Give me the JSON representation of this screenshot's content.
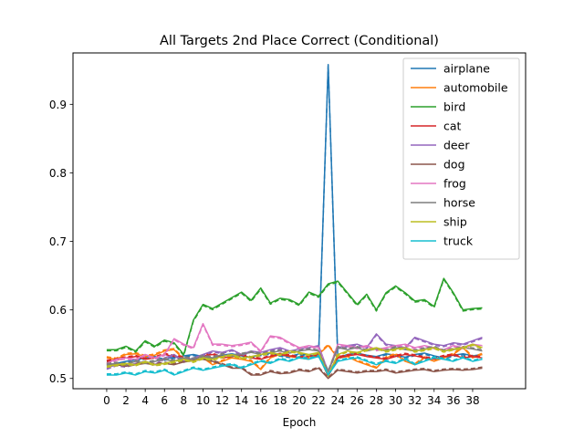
{
  "chart_data": {
    "type": "line",
    "title": "All Targets 2nd Place Correct (Conditional)",
    "xlabel": "Epoch",
    "ylabel": "",
    "xlim": [
      -3.5,
      43.5
    ],
    "ylim": [
      0.485,
      0.975
    ],
    "xticks": [
      0,
      2,
      4,
      6,
      8,
      10,
      12,
      14,
      16,
      18,
      20,
      22,
      24,
      26,
      28,
      30,
      32,
      34,
      36,
      38
    ],
    "yticks": [
      0.5,
      0.6,
      0.7,
      0.8,
      0.9
    ],
    "ytick_labels": [
      "0.5",
      "0.6",
      "0.7",
      "0.8",
      "0.9"
    ],
    "grid": false,
    "legend_position": "top-right",
    "x": [
      0,
      1,
      2,
      3,
      4,
      5,
      6,
      7,
      8,
      9,
      10,
      11,
      12,
      13,
      14,
      15,
      16,
      17,
      18,
      19,
      20,
      21,
      22,
      23,
      24,
      25,
      26,
      27,
      28,
      29,
      30,
      31,
      32,
      33,
      34,
      35,
      36,
      37,
      38,
      39
    ],
    "series": [
      {
        "name": "airplane",
        "color": "#1f77b4",
        "values": [
          0.52,
          0.522,
          0.525,
          0.527,
          0.53,
          0.532,
          0.528,
          0.531,
          0.533,
          0.535,
          0.532,
          0.53,
          0.534,
          0.536,
          0.533,
          0.531,
          0.535,
          0.537,
          0.534,
          0.532,
          0.536,
          0.534,
          0.533,
          0.958,
          0.53,
          0.535,
          0.537,
          0.534,
          0.532,
          0.536,
          0.534,
          0.531,
          0.535,
          0.537,
          0.533,
          0.53,
          0.534,
          0.536,
          0.533,
          0.535
        ]
      },
      {
        "name": "automobile",
        "color": "#ff7f0e",
        "values": [
          0.53,
          0.528,
          0.535,
          0.536,
          0.532,
          0.534,
          0.54,
          0.542,
          0.528,
          0.525,
          0.53,
          0.52,
          0.525,
          0.53,
          0.528,
          0.525,
          0.513,
          0.53,
          0.535,
          0.532,
          0.53,
          0.528,
          0.535,
          0.548,
          0.53,
          0.532,
          0.525,
          0.52,
          0.515,
          0.53,
          0.535,
          0.525,
          0.52,
          0.53,
          0.525,
          0.53,
          0.535,
          0.545,
          0.53,
          0.535
        ]
      },
      {
        "name": "bird",
        "color": "#2ca02c",
        "values": [
          0.542,
          0.542,
          0.547,
          0.54,
          0.555,
          0.547,
          0.556,
          0.552,
          0.535,
          0.585,
          0.608,
          0.602,
          0.61,
          0.618,
          0.626,
          0.614,
          0.632,
          0.61,
          0.617,
          0.615,
          0.608,
          0.626,
          0.62,
          0.638,
          0.642,
          0.625,
          0.608,
          0.623,
          0.6,
          0.625,
          0.635,
          0.625,
          0.613,
          0.615,
          0.605,
          0.646,
          0.625,
          0.6,
          0.602,
          0.603
        ]
      },
      {
        "name": "cat",
        "color": "#d62728",
        "values": [
          0.525,
          0.527,
          0.53,
          0.532,
          0.528,
          0.53,
          0.535,
          0.532,
          0.53,
          0.528,
          0.533,
          0.535,
          0.53,
          0.532,
          0.534,
          0.53,
          0.528,
          0.532,
          0.535,
          0.533,
          0.53,
          0.532,
          0.534,
          0.503,
          0.53,
          0.533,
          0.535,
          0.532,
          0.53,
          0.528,
          0.532,
          0.535,
          0.533,
          0.53,
          0.528,
          0.532,
          0.534,
          0.53,
          0.532,
          0.53
        ]
      },
      {
        "name": "deer",
        "color": "#9467bd",
        "values": [
          0.515,
          0.52,
          0.518,
          0.522,
          0.525,
          0.52,
          0.53,
          0.535,
          0.525,
          0.53,
          0.535,
          0.54,
          0.538,
          0.542,
          0.535,
          0.54,
          0.538,
          0.542,
          0.545,
          0.54,
          0.543,
          0.545,
          0.548,
          0.51,
          0.545,
          0.548,
          0.55,
          0.545,
          0.565,
          0.55,
          0.548,
          0.545,
          0.56,
          0.555,
          0.55,
          0.548,
          0.552,
          0.55,
          0.555,
          0.56
        ]
      },
      {
        "name": "dog",
        "color": "#8c564b",
        "values": [
          0.522,
          0.52,
          0.518,
          0.52,
          0.522,
          0.52,
          0.522,
          0.52,
          0.524,
          0.526,
          0.528,
          0.525,
          0.52,
          0.515,
          0.515,
          0.505,
          0.505,
          0.51,
          0.507,
          0.508,
          0.512,
          0.51,
          0.515,
          0.5,
          0.512,
          0.51,
          0.508,
          0.51,
          0.51,
          0.512,
          0.508,
          0.51,
          0.512,
          0.513,
          0.51,
          0.512,
          0.513,
          0.512,
          0.513,
          0.515
        ]
      },
      {
        "name": "frog",
        "color": "#e377c2",
        "values": [
          0.522,
          0.528,
          0.53,
          0.528,
          0.535,
          0.53,
          0.535,
          0.558,
          0.55,
          0.545,
          0.58,
          0.55,
          0.55,
          0.548,
          0.55,
          0.553,
          0.54,
          0.562,
          0.56,
          0.552,
          0.545,
          0.548,
          0.545,
          0.51,
          0.55,
          0.548,
          0.545,
          0.548,
          0.542,
          0.545,
          0.548,
          0.55,
          0.545,
          0.548,
          0.545,
          0.542,
          0.548,
          0.545,
          0.55,
          0.548
        ]
      },
      {
        "name": "horse",
        "color": "#7f7f7f",
        "values": [
          0.52,
          0.522,
          0.52,
          0.525,
          0.522,
          0.525,
          0.528,
          0.525,
          0.53,
          0.528,
          0.532,
          0.53,
          0.535,
          0.532,
          0.535,
          0.538,
          0.535,
          0.538,
          0.54,
          0.537,
          0.54,
          0.542,
          0.54,
          0.51,
          0.545,
          0.542,
          0.545,
          0.54,
          0.543,
          0.54,
          0.545,
          0.542,
          0.54,
          0.543,
          0.545,
          0.54,
          0.542,
          0.545,
          0.543,
          0.54
        ]
      },
      {
        "name": "ship",
        "color": "#bcbd22",
        "values": [
          0.518,
          0.52,
          0.522,
          0.52,
          0.525,
          0.52,
          0.522,
          0.525,
          0.528,
          0.525,
          0.53,
          0.528,
          0.532,
          0.535,
          0.53,
          0.532,
          0.535,
          0.538,
          0.535,
          0.54,
          0.538,
          0.535,
          0.538,
          0.505,
          0.535,
          0.54,
          0.538,
          0.542,
          0.545,
          0.54,
          0.543,
          0.545,
          0.54,
          0.542,
          0.545,
          0.54,
          0.543,
          0.545,
          0.55,
          0.545
        ]
      },
      {
        "name": "truck",
        "color": "#17becf",
        "values": [
          0.505,
          0.505,
          0.508,
          0.505,
          0.51,
          0.508,
          0.512,
          0.505,
          0.51,
          0.515,
          0.512,
          0.515,
          0.518,
          0.52,
          0.515,
          0.52,
          0.525,
          0.522,
          0.528,
          0.525,
          0.53,
          0.528,
          0.532,
          0.505,
          0.525,
          0.528,
          0.53,
          0.525,
          0.52,
          0.525,
          0.522,
          0.528,
          0.52,
          0.525,
          0.53,
          0.528,
          0.525,
          0.53,
          0.525,
          0.528
        ]
      }
    ]
  }
}
